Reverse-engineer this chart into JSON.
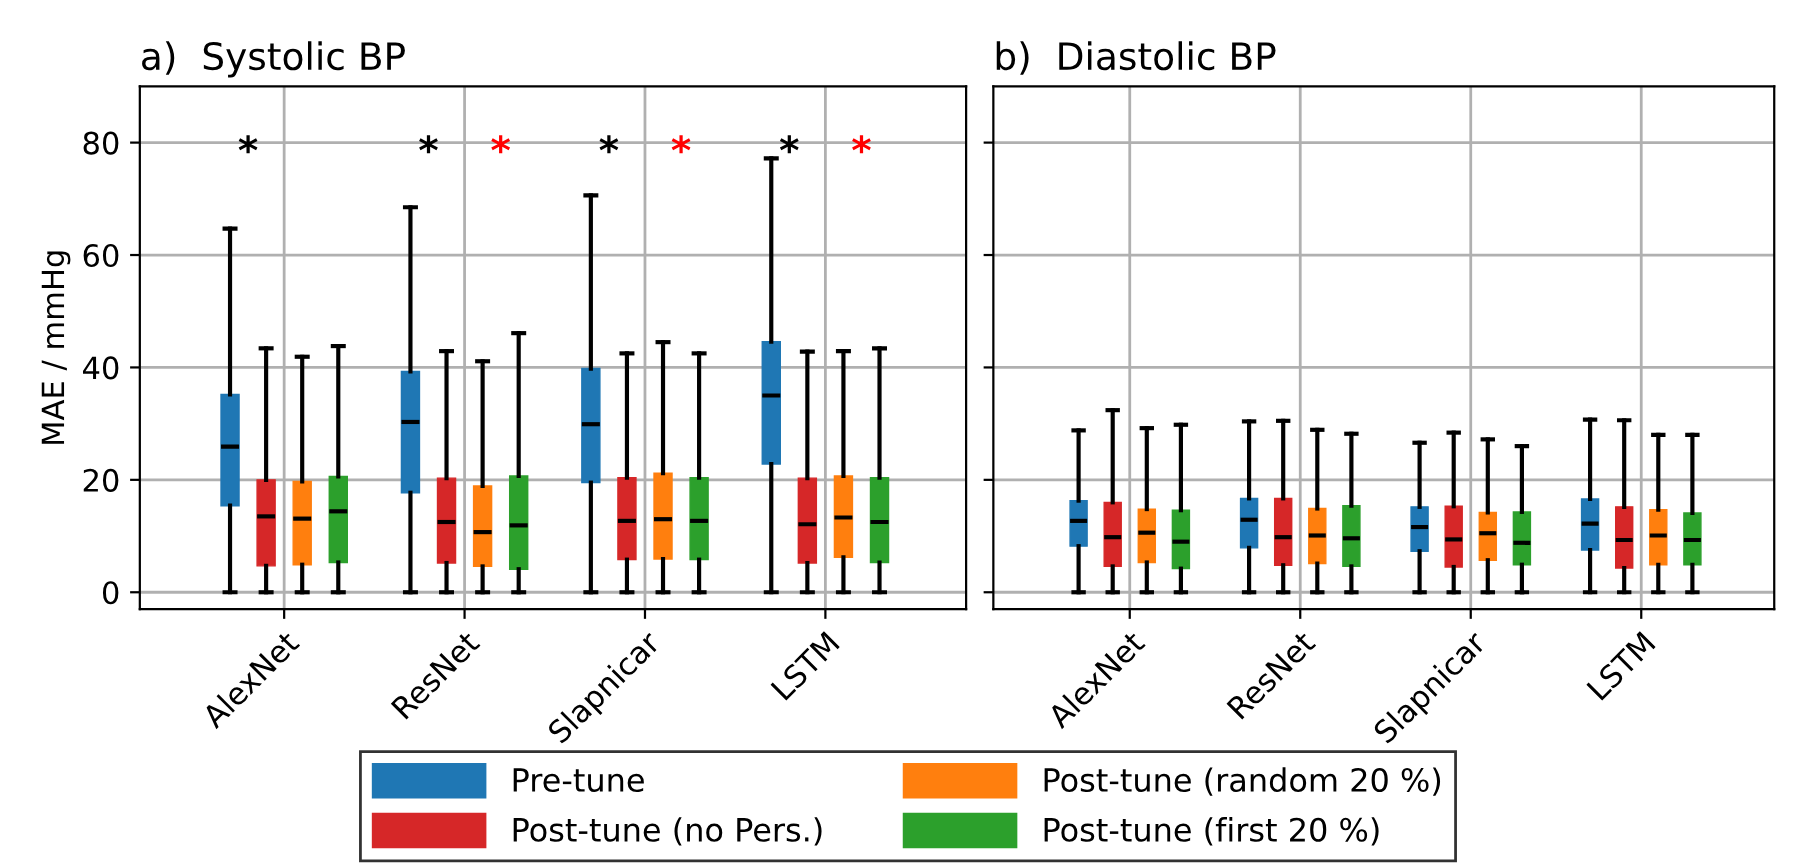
{
  "chart_data": [
    {
      "type": "box",
      "title": "a)  Systolic BP",
      "ylabel": "MAE / mmHg",
      "categories": [
        "AlexNet",
        "ResNet",
        "Slapnicar",
        "LSTM"
      ],
      "ylim": [
        -3,
        90
      ],
      "yticks": [
        0,
        20,
        40,
        60,
        80
      ],
      "grid": true,
      "legend": "bottom",
      "series": [
        {
          "name": "Pre-tune",
          "color": "#1f77b4",
          "boxes": [
            {
              "low": 0,
              "q1": 15.4,
              "median": 25.9,
              "q3": 35.2,
              "high": 64.7
            },
            {
              "low": 0,
              "q1": 17.7,
              "median": 30.3,
              "q3": 39.3,
              "high": 68.5
            },
            {
              "low": 0,
              "q1": 19.5,
              "median": 29.9,
              "q3": 39.8,
              "high": 70.6
            },
            {
              "low": 0,
              "q1": 22.8,
              "median": 35.0,
              "q3": 44.6,
              "high": 77.2
            }
          ]
        },
        {
          "name": "Post-tune (no Pers.)",
          "color": "#d62728",
          "boxes": [
            {
              "low": 0,
              "q1": 4.7,
              "median": 13.5,
              "q3": 20.0,
              "high": 43.4
            },
            {
              "low": 0,
              "q1": 5.2,
              "median": 12.5,
              "q3": 20.3,
              "high": 42.9
            },
            {
              "low": 0,
              "q1": 5.8,
              "median": 12.7,
              "q3": 20.4,
              "high": 42.5
            },
            {
              "low": 0,
              "q1": 5.2,
              "median": 12.1,
              "q3": 20.3,
              "high": 42.8
            }
          ]
        },
        {
          "name": "Post-tune (random 20 %)",
          "color": "#ff7f0e",
          "boxes": [
            {
              "low": 0,
              "q1": 4.9,
              "median": 13.1,
              "q3": 19.7,
              "high": 41.9
            },
            {
              "low": 0,
              "q1": 4.6,
              "median": 10.7,
              "q3": 18.9,
              "high": 41.1
            },
            {
              "low": 0,
              "q1": 5.9,
              "median": 13.0,
              "q3": 21.2,
              "high": 44.5
            },
            {
              "low": 0,
              "q1": 6.2,
              "median": 13.3,
              "q3": 20.7,
              "high": 42.9
            }
          ]
        },
        {
          "name": "Post-tune (first 20 %)",
          "color": "#2ca02c",
          "boxes": [
            {
              "low": 0,
              "q1": 5.3,
              "median": 14.4,
              "q3": 20.6,
              "high": 43.8
            },
            {
              "low": 0,
              "q1": 4.1,
              "median": 11.9,
              "q3": 20.7,
              "high": 46.1
            },
            {
              "low": 0,
              "q1": 5.8,
              "median": 12.7,
              "q3": 20.4,
              "high": 42.5
            },
            {
              "low": 0,
              "q1": 5.3,
              "median": 12.5,
              "q3": 20.4,
              "high": 43.4
            }
          ]
        }
      ],
      "annotations": [
        "*",
        "*",
        "*",
        "*",
        "*",
        "*",
        "*"
      ]
    },
    {
      "type": "box",
      "title": "b)  Diastolic BP",
      "categories": [
        "AlexNet",
        "ResNet",
        "Slapnicar",
        "LSTM"
      ],
      "ylim": [
        -3,
        90
      ],
      "yticks": [
        0,
        20,
        40,
        60,
        80
      ],
      "grid": true,
      "tick_labels": "x",
      "series": [
        {
          "color": "#1f77b4",
          "boxes": [
            {
              "low": 0,
              "q1": 8.2,
              "median": 12.7,
              "q3": 16.3,
              "high": 28.8
            },
            {
              "low": 0,
              "q1": 7.9,
              "median": 12.9,
              "q3": 16.7,
              "high": 30.4
            },
            {
              "low": 0,
              "q1": 7.3,
              "median": 11.6,
              "q3": 15.2,
              "high": 26.6
            },
            {
              "low": 0,
              "q1": 7.5,
              "median": 12.2,
              "q3": 16.6,
              "high": 30.7
            }
          ]
        },
        {
          "color": "#d62728",
          "boxes": [
            {
              "low": 0,
              "q1": 4.6,
              "median": 9.8,
              "q3": 16.0,
              "high": 32.4
            },
            {
              "low": 0,
              "q1": 4.8,
              "median": 9.8,
              "q3": 16.7,
              "high": 30.5
            },
            {
              "low": 0,
              "q1": 4.5,
              "median": 9.4,
              "q3": 15.3,
              "high": 28.4
            },
            {
              "low": 0,
              "q1": 4.3,
              "median": 9.3,
              "q3": 15.2,
              "high": 30.6
            }
          ]
        },
        {
          "color": "#ff7f0e",
          "boxes": [
            {
              "low": 0,
              "q1": 5.3,
              "median": 10.6,
              "q3": 14.8,
              "high": 29.2
            },
            {
              "low": 0,
              "q1": 5.1,
              "median": 10.1,
              "q3": 14.9,
              "high": 28.9
            },
            {
              "low": 0,
              "q1": 5.7,
              "median": 10.5,
              "q3": 14.2,
              "high": 27.2
            },
            {
              "low": 0,
              "q1": 4.9,
              "median": 10.1,
              "q3": 14.7,
              "high": 28.0
            }
          ]
        },
        {
          "color": "#2ca02c",
          "boxes": [
            {
              "low": 0,
              "q1": 4.2,
              "median": 9.0,
              "q3": 14.6,
              "high": 29.8
            },
            {
              "low": 0,
              "q1": 4.6,
              "median": 9.6,
              "q3": 15.4,
              "high": 28.2
            },
            {
              "low": 0,
              "q1": 4.9,
              "median": 8.8,
              "q3": 14.3,
              "high": 26.0
            },
            {
              "low": 0,
              "q1": 4.9,
              "median": 9.3,
              "q3": 14.1,
              "high": 28.0
            }
          ]
        }
      ]
    }
  ]
}
